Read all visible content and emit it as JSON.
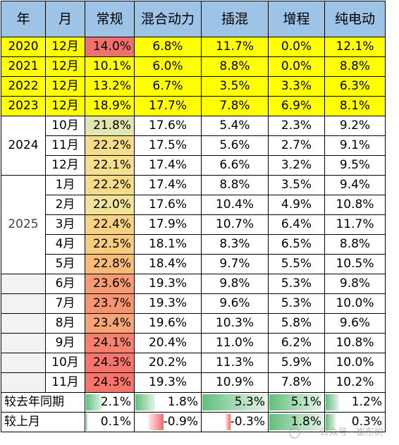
{
  "headers": [
    "年",
    "月",
    "常规",
    "混合动力",
    "插混",
    "增程",
    "纯电动"
  ],
  "colors": {
    "header_bg": "#9dc3e6",
    "highlight_row": "#ffff00",
    "heat_low": "#e2e6b0",
    "heat_high": "#f8696b",
    "bar_pos": "#63be7b",
    "bar_neg": "#f8696b"
  },
  "rows": [
    {
      "year": "2020",
      "month": "12月",
      "conv": "14.0%",
      "hybrid": "6.8%",
      "phev": "11.7%",
      "erev": "0.0%",
      "bev": "12.1%",
      "conv_heat": "#f0706e"
    },
    {
      "year": "2021",
      "month": "12月",
      "conv": "10.1%",
      "hybrid": "6.0%",
      "phev": "8.8%",
      "erev": "0.0%",
      "bev": "8.8%"
    },
    {
      "year": "2022",
      "month": "12月",
      "conv": "13.2%",
      "hybrid": "6.7%",
      "phev": "3.5%",
      "erev": "3.3%",
      "bev": "6.3%"
    },
    {
      "year": "2023",
      "month": "12月",
      "conv": "18.9%",
      "hybrid": "17.7%",
      "phev": "7.8%",
      "erev": "6.9%",
      "bev": "8.1%"
    },
    {
      "year": "2024",
      "month": "10月",
      "conv": "21.8%",
      "hybrid": "17.6%",
      "phev": "5.4%",
      "erev": "2.3%",
      "bev": "9.2%",
      "conv_heat": "#e2e6b0"
    },
    {
      "month": "11月",
      "conv": "22.2%",
      "hybrid": "17.5%",
      "phev": "5.6%",
      "erev": "2.7%",
      "bev": "9.1%",
      "conv_heat": "#f7dc8a"
    },
    {
      "month": "12月",
      "conv": "22.1%",
      "hybrid": "17.4%",
      "phev": "6.6%",
      "erev": "3.2%",
      "bev": "9.5%",
      "conv_heat": "#f6df8f"
    },
    {
      "year": "2025",
      "month": "1月",
      "conv": "22.2%",
      "hybrid": "17.4%",
      "phev": "8.8%",
      "erev": "3.5%",
      "bev": "9.4%",
      "conv_heat": "#f7dc8a"
    },
    {
      "month": "2月",
      "conv": "22.0%",
      "hybrid": "17.6%",
      "phev": "10.4%",
      "erev": "4.9%",
      "bev": "10.8%",
      "conv_heat": "#f2e39b"
    },
    {
      "month": "3月",
      "conv": "22.4%",
      "hybrid": "17.9%",
      "phev": "10.7%",
      "erev": "6.4%",
      "bev": "11.7%",
      "conv_heat": "#f8d282"
    },
    {
      "month": "4月",
      "conv": "22.5%",
      "hybrid": "18.1%",
      "phev": "8.3%",
      "erev": "6.5%",
      "bev": "8.8%",
      "conv_heat": "#f8cc7f"
    },
    {
      "month": "5月",
      "conv": "22.8%",
      "hybrid": "18.4%",
      "phev": "9.7%",
      "erev": "5.5%",
      "bev": "10.5%",
      "conv_heat": "#f8bc79"
    },
    {
      "month": "6月",
      "conv": "23.6%",
      "hybrid": "19.3%",
      "phev": "9.8%",
      "erev": "5.3%",
      "bev": "9.8%",
      "conv_heat": "#f89a72"
    },
    {
      "month": "7月",
      "conv": "23.7%",
      "hybrid": "19.3%",
      "phev": "9.6%",
      "erev": "5.3%",
      "bev": "10.0%",
      "conv_heat": "#f89571"
    },
    {
      "month": "8月",
      "conv": "23.4%",
      "hybrid": "19.6%",
      "phev": "10.3%",
      "erev": "5.8%",
      "bev": "9.6%",
      "conv_heat": "#f8a475"
    },
    {
      "month": "9月",
      "conv": "24.1%",
      "hybrid": "20.4%",
      "phev": "11.0%",
      "erev": "6.2%",
      "bev": "10.8%",
      "conv_heat": "#f8806e"
    },
    {
      "month": "10月",
      "conv": "24.3%",
      "hybrid": "20.2%",
      "phev": "11.3%",
      "erev": "5.9%",
      "bev": "10.0%",
      "conv_heat": "#f8756c"
    },
    {
      "month": "11月",
      "conv": "24.3%",
      "hybrid": "19.3%",
      "phev": "10.9%",
      "erev": "7.8%",
      "bev": "10.2%",
      "conv_heat": "#f8756c"
    }
  ],
  "yoy": {
    "label": "较去年同期",
    "conv": "2.1%",
    "hybrid": "1.8%",
    "phev": "5.3%",
    "erev": "5.1%",
    "bev": "1.2%",
    "conv_level": 0.35,
    "hybrid_level": 0.3,
    "phev_level": 1.0,
    "erev_level": 0.96,
    "bev_level": 0.23
  },
  "mom": {
    "label": "较上月",
    "conv": "0.1%",
    "hybrid": "-0.9%",
    "phev": "-0.3%",
    "erev": "1.8%",
    "bev": "0.3%",
    "conv_level": 0.02,
    "hybrid_level": -0.5,
    "phev_level": -0.17,
    "erev_level": 1.0,
    "bev_level": 0.17
  },
  "watermark": "公众号 · 崔东树"
}
